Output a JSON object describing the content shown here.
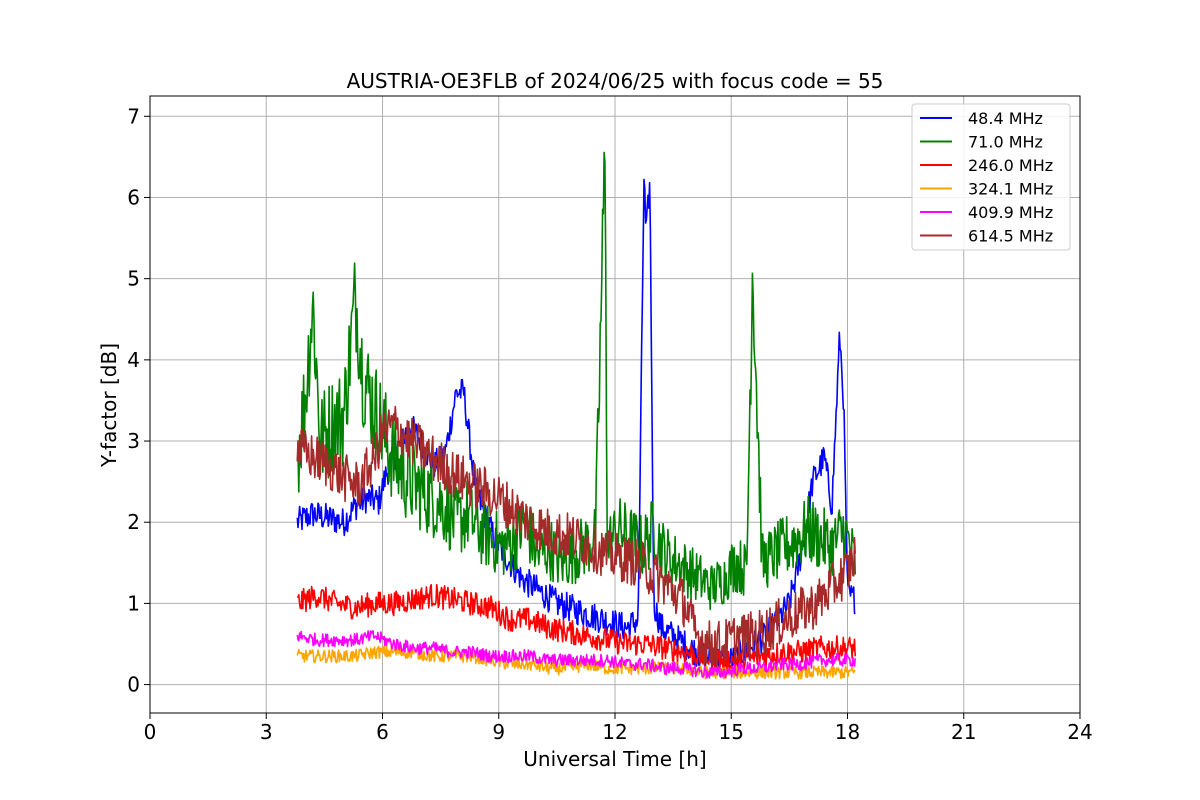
{
  "chart_data": {
    "type": "line",
    "title": "AUSTRIA-OE3FLB of 2024/06/25 with focus code = 55",
    "xlabel": "Universal Time [h]",
    "ylabel": "Y-factor [dB]",
    "xlim": [
      0,
      24
    ],
    "ylim": [
      -0.35,
      7.25
    ],
    "xticks": [
      0,
      3,
      6,
      9,
      12,
      15,
      18,
      21,
      24
    ],
    "yticks": [
      0,
      1,
      2,
      3,
      4,
      5,
      6,
      7
    ],
    "grid": true,
    "legend_position": "top-right",
    "series": [
      {
        "name": " 48.4 MHz",
        "color": "#0000ff",
        "x": [
          3.8,
          4.2,
          4.6,
          5.0,
          5.3,
          5.6,
          5.9,
          6.1,
          6.4,
          6.7,
          7.0,
          7.3,
          7.6,
          7.9,
          8.1,
          8.4,
          8.7,
          9.0,
          9.3,
          9.6,
          9.9,
          10.2,
          10.5,
          10.8,
          11.1,
          11.4,
          11.7,
          12.0,
          12.3,
          12.6,
          12.75,
          12.8,
          12.9,
          13.0,
          13.2,
          13.5,
          13.8,
          14.1,
          14.4,
          14.7,
          15.0,
          15.3,
          15.6,
          15.9,
          16.2,
          16.5,
          16.8,
          17.1,
          17.4,
          17.6,
          17.8,
          17.9,
          18.0,
          18.2
        ],
        "values": [
          2.0,
          2.1,
          2.05,
          2.0,
          2.2,
          2.3,
          2.25,
          2.6,
          2.9,
          3.2,
          3.0,
          2.7,
          2.8,
          3.6,
          3.6,
          2.4,
          2.0,
          1.7,
          1.5,
          1.3,
          1.2,
          1.1,
          1.0,
          0.95,
          0.9,
          0.85,
          0.8,
          0.75,
          0.7,
          0.8,
          6.3,
          5.5,
          6.2,
          1.0,
          0.7,
          0.6,
          0.5,
          0.4,
          0.35,
          0.3,
          0.3,
          0.4,
          0.5,
          0.6,
          0.8,
          1.0,
          1.6,
          2.5,
          2.8,
          2.2,
          4.3,
          3.5,
          1.1,
          1.05
        ]
      },
      {
        "name": " 71.0 MHz",
        "color": "#008000",
        "x": [
          3.8,
          4.0,
          4.2,
          4.4,
          4.7,
          5.0,
          5.3,
          5.5,
          5.8,
          6.1,
          6.4,
          6.7,
          7.0,
          7.3,
          7.6,
          7.9,
          8.2,
          8.5,
          8.8,
          9.1,
          9.4,
          9.7,
          10.0,
          10.3,
          10.6,
          10.9,
          11.2,
          11.5,
          11.75,
          11.8,
          12.1,
          12.4,
          12.7,
          13.0,
          13.3,
          13.6,
          13.9,
          14.2,
          14.5,
          14.8,
          15.1,
          15.4,
          15.55,
          15.8,
          16.1,
          16.4,
          16.7,
          17.0,
          17.3,
          17.6,
          17.9,
          18.2
        ],
        "values": [
          2.8,
          3.5,
          4.7,
          3.0,
          3.2,
          3.3,
          4.8,
          3.8,
          3.4,
          3.0,
          2.7,
          2.5,
          2.4,
          2.3,
          2.2,
          2.0,
          2.1,
          1.9,
          1.8,
          1.7,
          1.8,
          2.0,
          1.6,
          1.7,
          1.5,
          1.6,
          1.7,
          1.8,
          6.8,
          1.7,
          1.9,
          1.8,
          1.7,
          1.9,
          1.6,
          1.5,
          1.4,
          1.3,
          1.2,
          1.3,
          1.5,
          1.4,
          5.2,
          1.5,
          1.6,
          1.7,
          1.8,
          1.9,
          1.8,
          1.7,
          1.9,
          1.5
        ]
      },
      {
        "name": "246.0 MHz",
        "color": "#ff0000",
        "x": [
          3.8,
          4.3,
          4.8,
          5.3,
          5.8,
          6.3,
          6.8,
          7.3,
          7.8,
          8.3,
          8.8,
          9.3,
          9.8,
          10.3,
          10.8,
          11.3,
          11.8,
          12.3,
          12.8,
          13.3,
          13.8,
          14.3,
          14.8,
          15.3,
          15.8,
          16.3,
          16.8,
          17.3,
          17.8,
          18.2
        ],
        "values": [
          1.0,
          1.1,
          1.0,
          0.95,
          1.0,
          1.0,
          1.05,
          1.1,
          1.05,
          1.0,
          0.95,
          0.8,
          0.8,
          0.7,
          0.65,
          0.6,
          0.55,
          0.5,
          0.5,
          0.45,
          0.4,
          0.35,
          0.3,
          0.3,
          0.35,
          0.4,
          0.4,
          0.45,
          0.45,
          0.45
        ]
      },
      {
        "name": "324.1 MHz",
        "color": "#ffa500",
        "x": [
          3.8,
          4.3,
          4.8,
          5.3,
          5.8,
          6.3,
          6.8,
          7.3,
          7.8,
          8.3,
          8.8,
          9.3,
          9.8,
          10.3,
          10.8,
          11.3,
          11.8,
          12.3,
          12.8,
          13.3,
          13.8,
          14.3,
          14.8,
          15.3,
          15.8,
          16.3,
          16.8,
          17.3,
          17.8,
          18.2
        ],
        "values": [
          0.35,
          0.35,
          0.35,
          0.35,
          0.4,
          0.4,
          0.4,
          0.35,
          0.35,
          0.35,
          0.3,
          0.25,
          0.25,
          0.2,
          0.2,
          0.25,
          0.2,
          0.2,
          0.2,
          0.2,
          0.2,
          0.15,
          0.15,
          0.15,
          0.15,
          0.15,
          0.15,
          0.15,
          0.15,
          0.15
        ]
      },
      {
        "name": "409.9 MHz",
        "color": "#ff00ff",
        "x": [
          3.8,
          4.3,
          4.8,
          5.3,
          5.8,
          6.3,
          6.8,
          7.3,
          7.8,
          8.3,
          8.8,
          9.3,
          9.8,
          10.3,
          10.8,
          11.3,
          11.8,
          12.3,
          12.8,
          13.3,
          13.8,
          14.3,
          14.8,
          15.3,
          15.8,
          16.3,
          16.8,
          17.3,
          17.8,
          18.2
        ],
        "values": [
          0.6,
          0.55,
          0.55,
          0.55,
          0.6,
          0.5,
          0.45,
          0.45,
          0.4,
          0.4,
          0.35,
          0.35,
          0.35,
          0.3,
          0.3,
          0.3,
          0.3,
          0.25,
          0.25,
          0.2,
          0.2,
          0.15,
          0.15,
          0.2,
          0.2,
          0.25,
          0.25,
          0.3,
          0.3,
          0.3
        ]
      },
      {
        "name": "614.5 MHz",
        "color": "#a52a2a",
        "x": [
          3.8,
          4.2,
          4.6,
          5.0,
          5.4,
          5.8,
          6.0,
          6.3,
          6.6,
          7.0,
          7.4,
          7.8,
          8.2,
          8.6,
          9.0,
          9.4,
          9.8,
          10.2,
          10.6,
          11.0,
          11.4,
          11.8,
          12.2,
          12.6,
          13.0,
          13.4,
          13.8,
          14.1,
          14.4,
          14.8,
          15.2,
          15.6,
          16.0,
          16.4,
          16.8,
          17.2,
          17.6,
          18.0,
          18.2
        ],
        "values": [
          2.9,
          2.8,
          2.7,
          2.55,
          2.45,
          2.8,
          3.1,
          3.2,
          3.05,
          2.9,
          2.75,
          2.6,
          2.5,
          2.4,
          2.3,
          2.15,
          2.0,
          1.9,
          1.85,
          1.8,
          1.7,
          1.6,
          1.55,
          1.5,
          1.35,
          1.2,
          1.0,
          0.6,
          0.5,
          0.5,
          0.6,
          0.6,
          0.7,
          0.8,
          0.9,
          1.0,
          1.2,
          1.4,
          1.6
        ]
      }
    ]
  }
}
